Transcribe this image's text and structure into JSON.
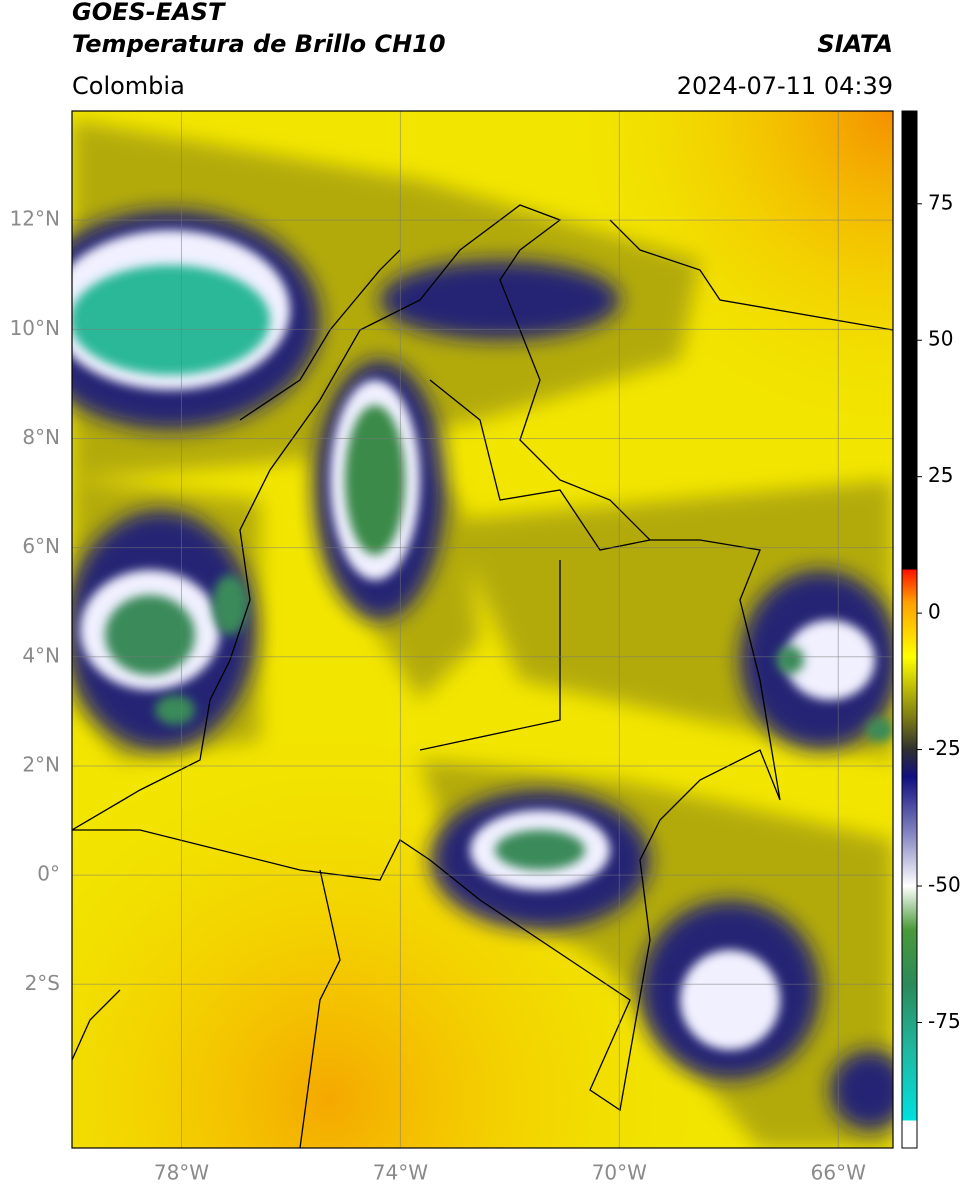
{
  "header": {
    "title": "GOES-EAST",
    "subtitle": "Temperatura de Brillo CH10",
    "source": "SIATA",
    "region": "Colombia",
    "timestamp": "2024-07-11 04:39"
  },
  "map": {
    "xlim": [
      -80,
      -65
    ],
    "ylim": [
      -5,
      14
    ],
    "xticks": [
      {
        "value": -78,
        "label": "78°W"
      },
      {
        "value": -74,
        "label": "74°W"
      },
      {
        "value": -70,
        "label": "70°W"
      },
      {
        "value": -66,
        "label": "66°W"
      }
    ],
    "yticks": [
      {
        "value": 12,
        "label": "12°N"
      },
      {
        "value": 10,
        "label": "10°N"
      },
      {
        "value": 8,
        "label": "8°N"
      },
      {
        "value": 6,
        "label": "6°N"
      },
      {
        "value": 4,
        "label": "4°N"
      },
      {
        "value": 2,
        "label": "2°N"
      },
      {
        "value": 0,
        "label": "0°"
      },
      {
        "value": -2,
        "label": "2°S"
      }
    ],
    "grid": true
  },
  "colorbar": {
    "lim": [
      -98,
      92
    ],
    "ticks": [
      75,
      50,
      25,
      0,
      -25,
      -50,
      -75
    ],
    "stops": [
      {
        "value": -98,
        "color": "#ffffff"
      },
      {
        "value": -93,
        "color": "#ffffff"
      },
      {
        "value": -93,
        "color": "#00e0e0"
      },
      {
        "value": -80,
        "color": "#20b8a0"
      },
      {
        "value": -68,
        "color": "#2a8a5a"
      },
      {
        "value": -58,
        "color": "#4a9a3a"
      },
      {
        "value": -50,
        "color": "#ffffff"
      },
      {
        "value": -40,
        "color": "#8080c0"
      },
      {
        "value": -30,
        "color": "#101080"
      },
      {
        "value": -25,
        "color": "#303030"
      },
      {
        "value": -18,
        "color": "#8a8a10"
      },
      {
        "value": -8,
        "color": "#ffff00"
      },
      {
        "value": 2,
        "color": "#ffa000"
      },
      {
        "value": 8,
        "color": "#ff1000"
      },
      {
        "value": 8,
        "color": "#000000"
      },
      {
        "value": 92,
        "color": "#000000"
      }
    ]
  }
}
